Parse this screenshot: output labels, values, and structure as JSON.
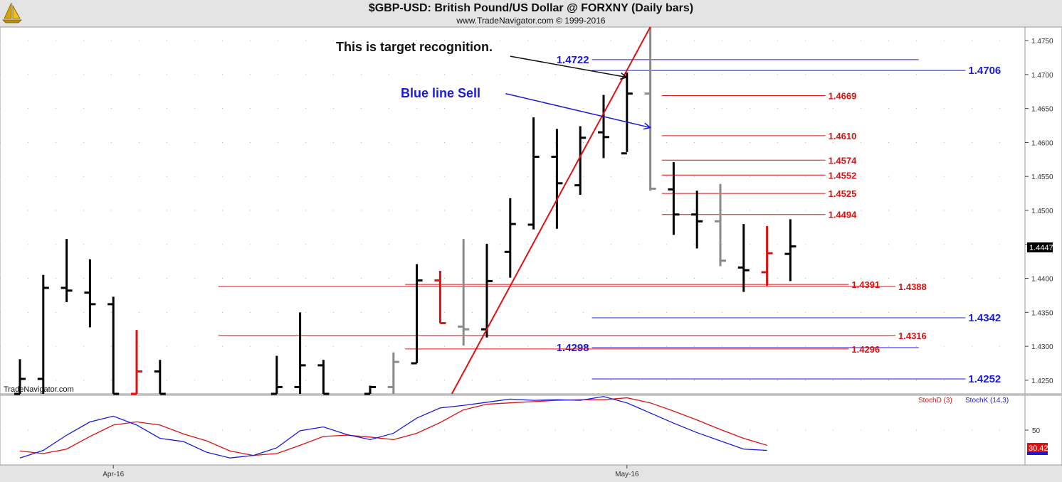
{
  "header": {
    "title": "$GBP-USD:  British Pound/US Dollar @ FORXNY  (Daily bars)",
    "subtitle": "www.TradeNavigator.com © 1999-2016"
  },
  "branding": {
    "watermark": "TradeNavigator.com",
    "logo_icon": "sailboat-logo-icon"
  },
  "chart_data": [
    {
      "type": "bar",
      "name": "price-panel",
      "y_axis": {
        "ticks": [
          "1.4750",
          "1.4700",
          "1.4650",
          "1.4600",
          "1.4550",
          "1.4500",
          "1.4450",
          "1.4400",
          "1.4350",
          "1.4300",
          "1.4250"
        ],
        "tick_values": [
          1.475,
          1.47,
          1.465,
          1.46,
          1.455,
          1.45,
          1.445,
          1.44,
          1.435,
          1.43,
          1.425
        ],
        "range": [
          1.423,
          1.477
        ],
        "last_value": "1.4447"
      },
      "x_axis": {
        "labels": [
          "Apr-16",
          "May-16"
        ],
        "label_bar_index": [
          4,
          26
        ]
      },
      "bars": [
        {
          "i": 0,
          "h": 1.4281,
          "l": 1.423,
          "o": 1.423,
          "c": 1.4252,
          "color": "black"
        },
        {
          "i": 1,
          "h": 1.4405,
          "l": 1.423,
          "o": 1.4252,
          "c": 1.4386,
          "color": "black"
        },
        {
          "i": 2,
          "h": 1.4458,
          "l": 1.4365,
          "o": 1.4386,
          "c": 1.4382,
          "color": "black"
        },
        {
          "i": 3,
          "h": 1.4428,
          "l": 1.4328,
          "o": 1.4379,
          "c": 1.4362,
          "color": "black"
        },
        {
          "i": 4,
          "h": 1.4373,
          "l": 1.423,
          "o": 1.4362,
          "c": 1.423,
          "color": "black"
        },
        {
          "i": 5,
          "h": 1.4324,
          "l": 1.423,
          "o": 1.423,
          "c": 1.4263,
          "color": "red"
        },
        {
          "i": 6,
          "h": 1.428,
          "l": 1.423,
          "o": 1.4263,
          "c": 1.423,
          "color": "black"
        },
        {
          "i": 11,
          "h": 1.4286,
          "l": 1.423,
          "o": 1.423,
          "c": 1.424,
          "color": "black"
        },
        {
          "i": 12,
          "h": 1.435,
          "l": 1.423,
          "o": 1.424,
          "c": 1.4272,
          "color": "black"
        },
        {
          "i": 13,
          "h": 1.428,
          "l": 1.423,
          "o": 1.4272,
          "c": 1.423,
          "color": "black"
        },
        {
          "i": 15,
          "h": 1.4242,
          "l": 1.423,
          "o": 1.423,
          "c": 1.424,
          "color": "black"
        },
        {
          "i": 16,
          "h": 1.4291,
          "l": 1.423,
          "o": 1.424,
          "c": 1.4277,
          "color": "gray"
        },
        {
          "i": 17,
          "h": 1.4421,
          "l": 1.4275,
          "o": 1.4275,
          "c": 1.4397,
          "color": "black"
        },
        {
          "i": 18,
          "h": 1.4411,
          "l": 1.4334,
          "o": 1.4397,
          "c": 1.4334,
          "color": "red"
        },
        {
          "i": 19,
          "h": 1.4458,
          "l": 1.4301,
          "o": 1.4329,
          "c": 1.4325,
          "color": "gray"
        },
        {
          "i": 20,
          "h": 1.4451,
          "l": 1.4313,
          "o": 1.4325,
          "c": 1.4396,
          "color": "black"
        },
        {
          "i": 21,
          "h": 1.4518,
          "l": 1.4401,
          "o": 1.4439,
          "c": 1.448,
          "color": "black"
        },
        {
          "i": 22,
          "h": 1.4637,
          "l": 1.4472,
          "o": 1.4479,
          "c": 1.4579,
          "color": "black"
        },
        {
          "i": 23,
          "h": 1.462,
          "l": 1.4473,
          "o": 1.4579,
          "c": 1.454,
          "color": "black"
        },
        {
          "i": 24,
          "h": 1.4624,
          "l": 1.4523,
          "o": 1.4537,
          "c": 1.4607,
          "color": "black"
        },
        {
          "i": 25,
          "h": 1.467,
          "l": 1.4577,
          "o": 1.4615,
          "c": 1.4608,
          "color": "black"
        },
        {
          "i": 26,
          "h": 1.4703,
          "l": 1.4586,
          "o": 1.4584,
          "c": 1.4672,
          "color": "black"
        },
        {
          "i": 27,
          "h": 1.477,
          "l": 1.4529,
          "o": 1.4672,
          "c": 1.4532,
          "color": "gray"
        },
        {
          "i": 28,
          "h": 1.4571,
          "l": 1.4464,
          "o": 1.4531,
          "c": 1.4494,
          "color": "black"
        },
        {
          "i": 29,
          "h": 1.4529,
          "l": 1.4444,
          "o": 1.4494,
          "c": 1.4484,
          "color": "black"
        },
        {
          "i": 30,
          "h": 1.4539,
          "l": 1.4418,
          "o": 1.4484,
          "c": 1.4426,
          "color": "gray"
        },
        {
          "i": 31,
          "h": 1.448,
          "l": 1.438,
          "o": 1.4416,
          "c": 1.4412,
          "color": "black"
        },
        {
          "i": 32,
          "h": 1.4477,
          "l": 1.4389,
          "o": 1.4409,
          "c": 1.4437,
          "color": "red"
        },
        {
          "i": 33,
          "h": 1.4487,
          "l": 1.4396,
          "o": 1.4436,
          "c": 1.4447,
          "color": "black"
        }
      ],
      "horizontal_levels": [
        {
          "value": 1.4722,
          "label": "1.4722",
          "color": "#1a1adf",
          "label_side": "left",
          "from_bar": 24.5,
          "to_bar": 38.5
        },
        {
          "value": 1.4706,
          "label": "1.4706",
          "color": "#1a1adf",
          "label_side": "right",
          "from_bar": 24.5,
          "to_bar": 40.5
        },
        {
          "value": 1.4669,
          "label": "1.4669",
          "color": "#dd1111",
          "label_side": "right",
          "from_bar": 27.5,
          "to_bar": 34.5
        },
        {
          "value": 1.461,
          "label": "1.4610",
          "color": "#dd1111",
          "label_side": "right",
          "from_bar": 27.5,
          "to_bar": 34.5
        },
        {
          "value": 1.4574,
          "label": "1.4574",
          "color": "#dd1111",
          "label_side": "right",
          "from_bar": 27.5,
          "to_bar": 34.5
        },
        {
          "value": 1.4552,
          "label": "1.4552",
          "color": "#dd1111",
          "label_side": "right",
          "from_bar": 27.5,
          "to_bar": 34.5
        },
        {
          "value": 1.4525,
          "label": "1.4525",
          "color": "#dd1111",
          "label_side": "right",
          "from_bar": 27.5,
          "to_bar": 34.5
        },
        {
          "value": 1.4494,
          "label": "1.4494",
          "color": "#dd1111",
          "label_side": "right",
          "from_bar": 27.5,
          "to_bar": 34.5
        },
        {
          "value": 1.4391,
          "label": "1.4391",
          "color": "#dd1111",
          "label_side": "right",
          "from_bar": 16.5,
          "to_bar": 35.5
        },
        {
          "value": 1.4388,
          "label": "1.4388",
          "color": "#dd1111",
          "label_side": "right",
          "from_bar": 8.5,
          "to_bar": 37.5
        },
        {
          "value": 1.4342,
          "label": "1.4342",
          "color": "#1a1adf",
          "label_side": "right",
          "from_bar": 24.5,
          "to_bar": 40.5
        },
        {
          "value": 1.4316,
          "label": "1.4316",
          "color": "#dd1111",
          "label_side": "right",
          "from_bar": 8.5,
          "to_bar": 37.5
        },
        {
          "value": 1.4298,
          "label": "1.4298",
          "color": "#1a1adf",
          "label_side": "left",
          "from_bar": 24.5,
          "to_bar": 38.5
        },
        {
          "value": 1.4296,
          "label": "1.4296",
          "color": "#dd1111",
          "label_side": "right",
          "from_bar": 16.5,
          "to_bar": 35.5
        },
        {
          "value": 1.4252,
          "label": "1.4252",
          "color": "#1a1adf",
          "label_side": "right",
          "from_bar": 24.5,
          "to_bar": 40.5
        }
      ],
      "trendline": {
        "color": "#dd1111",
        "from": {
          "bar": 18.5,
          "value": 1.423
        },
        "to": {
          "bar": 27,
          "value": 1.477
        }
      },
      "annotations": [
        {
          "text": "This is target recognition.",
          "color": "#111111",
          "arrow_from": {
            "bar": 21,
            "value": 1.4727
          },
          "arrow_to": {
            "bar": 26,
            "value": 1.4696
          }
        },
        {
          "text": "Blue line Sell",
          "color": "#1a1adf",
          "arrow_from": {
            "bar": 20.8,
            "value": 1.4672
          },
          "arrow_to": {
            "bar": 27,
            "value": 1.4622
          }
        }
      ]
    },
    {
      "type": "line",
      "name": "stochastic-panel",
      "y_axis": {
        "ticks": [
          "50"
        ],
        "tick_values": [
          50
        ],
        "range": [
          -5,
          105
        ],
        "last_value": "30.42"
      },
      "series": [
        {
          "name": "StochD (3)",
          "color": "#dd1111",
          "values": [
            17,
            13,
            20,
            40,
            58,
            63,
            58,
            44,
            33,
            17,
            10,
            13,
            26,
            40,
            42,
            39,
            35,
            45,
            62,
            82,
            91,
            93,
            95,
            97,
            98,
            98,
            101,
            93,
            80,
            66,
            51,
            37,
            26
          ]
        },
        {
          "name": "StochK (14,3)",
          "color": "#1a1adf",
          "values": [
            6,
            18,
            42,
            63,
            72,
            58,
            37,
            32,
            15,
            6,
            10,
            22,
            49,
            55,
            43,
            35,
            45,
            69,
            85,
            89,
            94,
            99,
            97,
            98,
            97,
            103,
            93,
            77,
            61,
            46,
            33,
            20,
            18
          ]
        }
      ]
    }
  ]
}
